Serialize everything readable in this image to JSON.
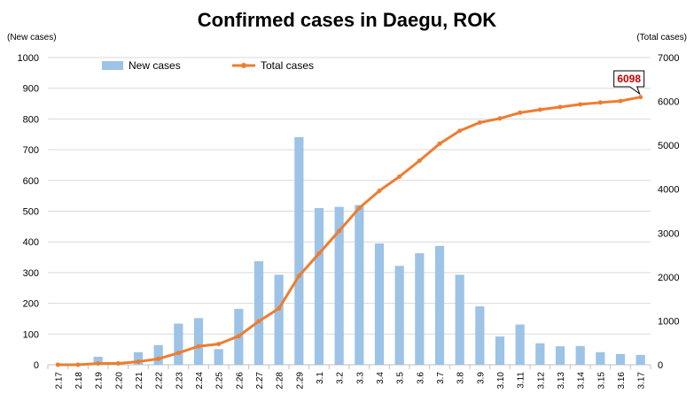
{
  "chart_data": {
    "type": "bar+line",
    "title": "Confirmed cases in Daegu, ROK",
    "left_axis_label": "(New cases)",
    "right_axis_label": "(Total cases)",
    "categories": [
      "2.17",
      "2.18",
      "2.19",
      "2.20",
      "2.21",
      "2.22",
      "2.23",
      "2.24",
      "2.25",
      "2.26",
      "2.27",
      "2.28",
      "2.29",
      "3.1",
      "3.2",
      "3.3",
      "3.4",
      "3.5",
      "3.6",
      "3.7",
      "3.8",
      "3.9",
      "3.10",
      "3.11",
      "3.12",
      "3.13",
      "3.14",
      "3.15",
      "3.16",
      "3.17"
    ],
    "series": [
      {
        "name": "New cases",
        "type": "bar",
        "axis": "left",
        "color": "#9dc3e6",
        "values": [
          0,
          1,
          26,
          3,
          41,
          64,
          134,
          152,
          51,
          182,
          337,
          293,
          741,
          510,
          514,
          520,
          395,
          322,
          363,
          387,
          293,
          190,
          92,
          131,
          70,
          60,
          61,
          41,
          35,
          32
        ]
      },
      {
        "name": "Total cases",
        "type": "line",
        "axis": "right",
        "color": "#ed7d31",
        "values": [
          1,
          1,
          27,
          30,
          71,
          135,
          269,
          421,
          472,
          654,
          991,
          1284,
          2025,
          2536,
          3050,
          3570,
          3965,
          4287,
          4650,
          5037,
          5330,
          5520,
          5612,
          5743,
          5813,
          5873,
          5934,
          5975,
          6010,
          6098
        ]
      }
    ],
    "y_left": {
      "min": 0,
      "max": 1000,
      "step": 100
    },
    "y_right": {
      "min": 0,
      "max": 7000,
      "step": 1000
    },
    "grid": true,
    "legend_position": "top-left",
    "annotation": {
      "text": "6098",
      "color": "#c00000",
      "point_index": 29,
      "series": "Total cases"
    }
  }
}
